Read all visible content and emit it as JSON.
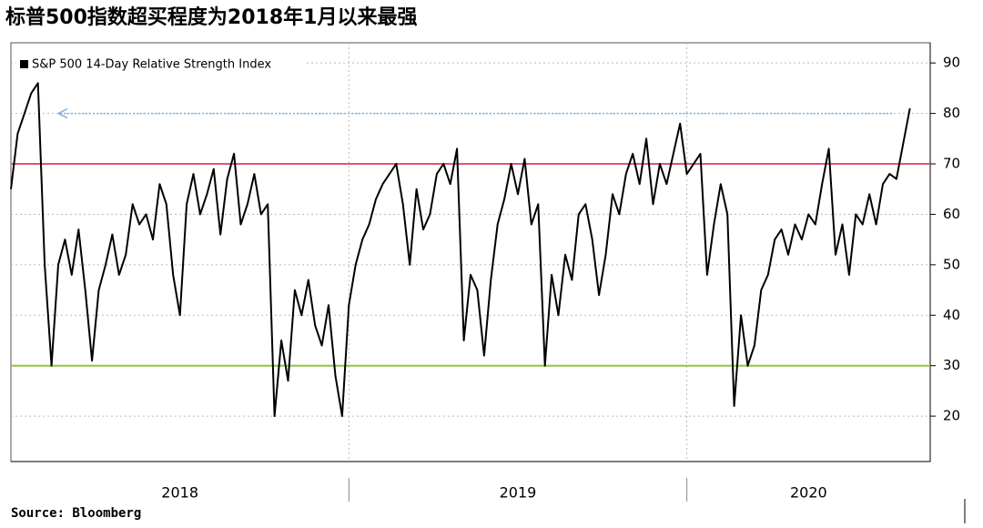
{
  "chart_data": {
    "type": "line",
    "title": "标普500指数超买程度为2018年1月以来最强",
    "source": "Source: Bloomberg",
    "series": [
      {
        "name": "S&P 500 14-Day Relative Strength Index",
        "color": "#000000",
        "x": [
          2018.0,
          2018.02,
          2018.04,
          2018.06,
          2018.08,
          2018.1,
          2018.12,
          2018.14,
          2018.16,
          2018.18,
          2018.2,
          2018.22,
          2018.24,
          2018.26,
          2018.28,
          2018.3,
          2018.32,
          2018.34,
          2018.36,
          2018.38,
          2018.4,
          2018.42,
          2018.44,
          2018.46,
          2018.48,
          2018.5,
          2018.52,
          2018.54,
          2018.56,
          2018.58,
          2018.6,
          2018.62,
          2018.64,
          2018.66,
          2018.68,
          2018.7,
          2018.72,
          2018.74,
          2018.76,
          2018.78,
          2018.8,
          2018.82,
          2018.84,
          2018.86,
          2018.88,
          2018.9,
          2018.92,
          2018.94,
          2018.96,
          2018.98,
          2019.0,
          2019.02,
          2019.04,
          2019.06,
          2019.08,
          2019.1,
          2019.12,
          2019.14,
          2019.16,
          2019.18,
          2019.2,
          2019.22,
          2019.24,
          2019.26,
          2019.28,
          2019.3,
          2019.32,
          2019.34,
          2019.36,
          2019.38,
          2019.4,
          2019.42,
          2019.44,
          2019.46,
          2019.48,
          2019.5,
          2019.52,
          2019.54,
          2019.56,
          2019.58,
          2019.6,
          2019.62,
          2019.64,
          2019.66,
          2019.68,
          2019.7,
          2019.72,
          2019.74,
          2019.76,
          2019.78,
          2019.8,
          2019.82,
          2019.84,
          2019.86,
          2019.88,
          2019.9,
          2019.92,
          2019.94,
          2019.96,
          2019.98,
          2020.0,
          2020.02,
          2020.04,
          2020.06,
          2020.08,
          2020.1,
          2020.12,
          2020.14,
          2020.16,
          2020.18,
          2020.2,
          2020.22,
          2020.24,
          2020.26,
          2020.28,
          2020.3,
          2020.32,
          2020.34,
          2020.36,
          2020.38,
          2020.4,
          2020.42,
          2020.44,
          2020.46,
          2020.48,
          2020.5,
          2020.52,
          2020.54,
          2020.56,
          2020.58,
          2020.6,
          2020.62,
          2020.64,
          2020.66
        ],
        "values": [
          65,
          76,
          80,
          84,
          86,
          50,
          30,
          50,
          55,
          48,
          57,
          45,
          31,
          45,
          50,
          56,
          48,
          52,
          62,
          58,
          60,
          55,
          66,
          62,
          48,
          40,
          62,
          68,
          60,
          64,
          69,
          56,
          67,
          72,
          58,
          62,
          68,
          60,
          62,
          20,
          35,
          27,
          45,
          40,
          47,
          38,
          34,
          42,
          28,
          20,
          42,
          50,
          55,
          58,
          63,
          66,
          68,
          70,
          62,
          50,
          65,
          57,
          60,
          68,
          70,
          66,
          73,
          35,
          48,
          45,
          32,
          47,
          58,
          63,
          70,
          64,
          71,
          58,
          62,
          30,
          48,
          40,
          52,
          47,
          60,
          62,
          55,
          44,
          52,
          64,
          60,
          68,
          72,
          66,
          75,
          62,
          70,
          66,
          72,
          78,
          68,
          70,
          72,
          48,
          58,
          66,
          60,
          22,
          40,
          30,
          34,
          45,
          48,
          55,
          57,
          52,
          58,
          55,
          60,
          58,
          66,
          73,
          52,
          58,
          48,
          60,
          58,
          64,
          58,
          66,
          68,
          67,
          74,
          81
        ]
      }
    ],
    "reference_lines": [
      {
        "value": 70,
        "color": "#e0566e"
      },
      {
        "value": 30,
        "color": "#8dc63f"
      }
    ],
    "arrow": {
      "value": 80,
      "color": "#7fb2e0"
    },
    "xlim": [
      2018,
      2020.72
    ],
    "xticks": [
      {
        "value": 2018.5,
        "label": "2018"
      },
      {
        "value": 2019.5,
        "label": "2019"
      },
      {
        "value": 2020.36,
        "label": "2020"
      }
    ],
    "xdividers": [
      2019,
      2020
    ],
    "ylim": [
      11,
      94
    ],
    "yticks": [
      20,
      30,
      40,
      50,
      60,
      70,
      80,
      90
    ],
    "grid": true
  }
}
